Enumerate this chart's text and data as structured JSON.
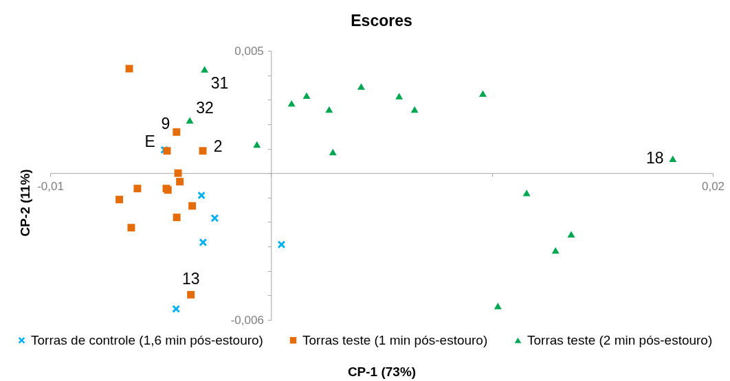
{
  "chart_data": {
    "type": "scatter",
    "title": "Escores",
    "xlabel": "CP-1 (73%)",
    "ylabel": "CP-2 (11%)",
    "xlim": [
      -0.01,
      0.02
    ],
    "ylim": [
      -0.006,
      0.005
    ],
    "xticks": [
      {
        "value": -0.01,
        "label": "-0,01"
      },
      {
        "value": 0,
        "label": null
      },
      {
        "value": 0.01,
        "label": null
      },
      {
        "value": 0.02,
        "label": "0,02"
      }
    ],
    "yticks": [
      {
        "value": -0.006,
        "label": "-0,006"
      },
      {
        "value": -0.005,
        "label": null
      },
      {
        "value": -0.004,
        "label": null
      },
      {
        "value": -0.003,
        "label": null
      },
      {
        "value": -0.002,
        "label": null
      },
      {
        "value": -0.001,
        "label": null
      },
      {
        "value": 0,
        "label": null
      },
      {
        "value": 0.001,
        "label": null
      },
      {
        "value": 0.002,
        "label": null
      },
      {
        "value": 0.003,
        "label": null
      },
      {
        "value": 0.004,
        "label": null
      },
      {
        "value": 0.005,
        "label": "0,005"
      }
    ],
    "grid": false,
    "legend": "bottom",
    "series": [
      {
        "name": "Torras de controle (1,6 min pós-estouro)",
        "color": "#00b0f0",
        "marker": "cross",
        "x": [
          -0.00483,
          -0.00315,
          -0.00255,
          -0.00308,
          0.00047,
          -0.0043
        ],
        "values": [
          0.00095,
          -0.00091,
          -0.00184,
          -0.00283,
          -0.00292,
          -0.00555
        ]
      },
      {
        "name": "Torras teste (1 min pós-estouro)",
        "color": "#e46c0a",
        "marker": "square",
        "x": [
          -0.00642,
          -0.00428,
          -0.00471,
          -0.00309,
          -0.00421,
          -0.00413,
          -0.00605,
          -0.00474,
          -0.00467,
          -0.00687,
          -0.00357,
          -0.00427,
          -0.00633,
          -0.00363
        ],
        "values": [
          0.00427,
          0.00168,
          0.00091,
          0.00091,
          0.0,
          -0.00035,
          -0.00063,
          -0.00063,
          -0.00069,
          -0.00108,
          -0.00134,
          -0.00181,
          -0.00223,
          -0.00497
        ]
      },
      {
        "name": "Torras teste (2 min pós-estouro)",
        "color": "#00a650",
        "marker": "triangle",
        "x": [
          -0.00301,
          -0.00368,
          -0.00064,
          0.00093,
          0.00161,
          0.00263,
          0.00408,
          0.0058,
          0.0065,
          0.00959,
          0.0028,
          0.01819,
          0.01157,
          0.01359,
          0.01288,
          0.01027
        ],
        "values": [
          0.00424,
          0.00216,
          0.00117,
          0.00285,
          0.00317,
          0.0026,
          0.00354,
          0.00315,
          0.0026,
          0.00325,
          0.00086,
          0.00059,
          -0.00081,
          -0.0025,
          -0.00316,
          -0.00543
        ]
      }
    ],
    "annotations": [
      {
        "text": "31",
        "x": -0.00301,
        "y": 0.00424
      },
      {
        "text": "32",
        "x": -0.00368,
        "y": 0.00216
      },
      {
        "text": "9",
        "x": -0.00428,
        "y": 0.00168
      },
      {
        "text": "E",
        "x": -0.00483,
        "y": 0.00095
      },
      {
        "text": "2",
        "x": -0.00309,
        "y": 0.00091
      },
      {
        "text": "18",
        "x": 0.01819,
        "y": 0.00059
      },
      {
        "text": "13",
        "x": -0.00363,
        "y": -0.00497
      }
    ]
  }
}
